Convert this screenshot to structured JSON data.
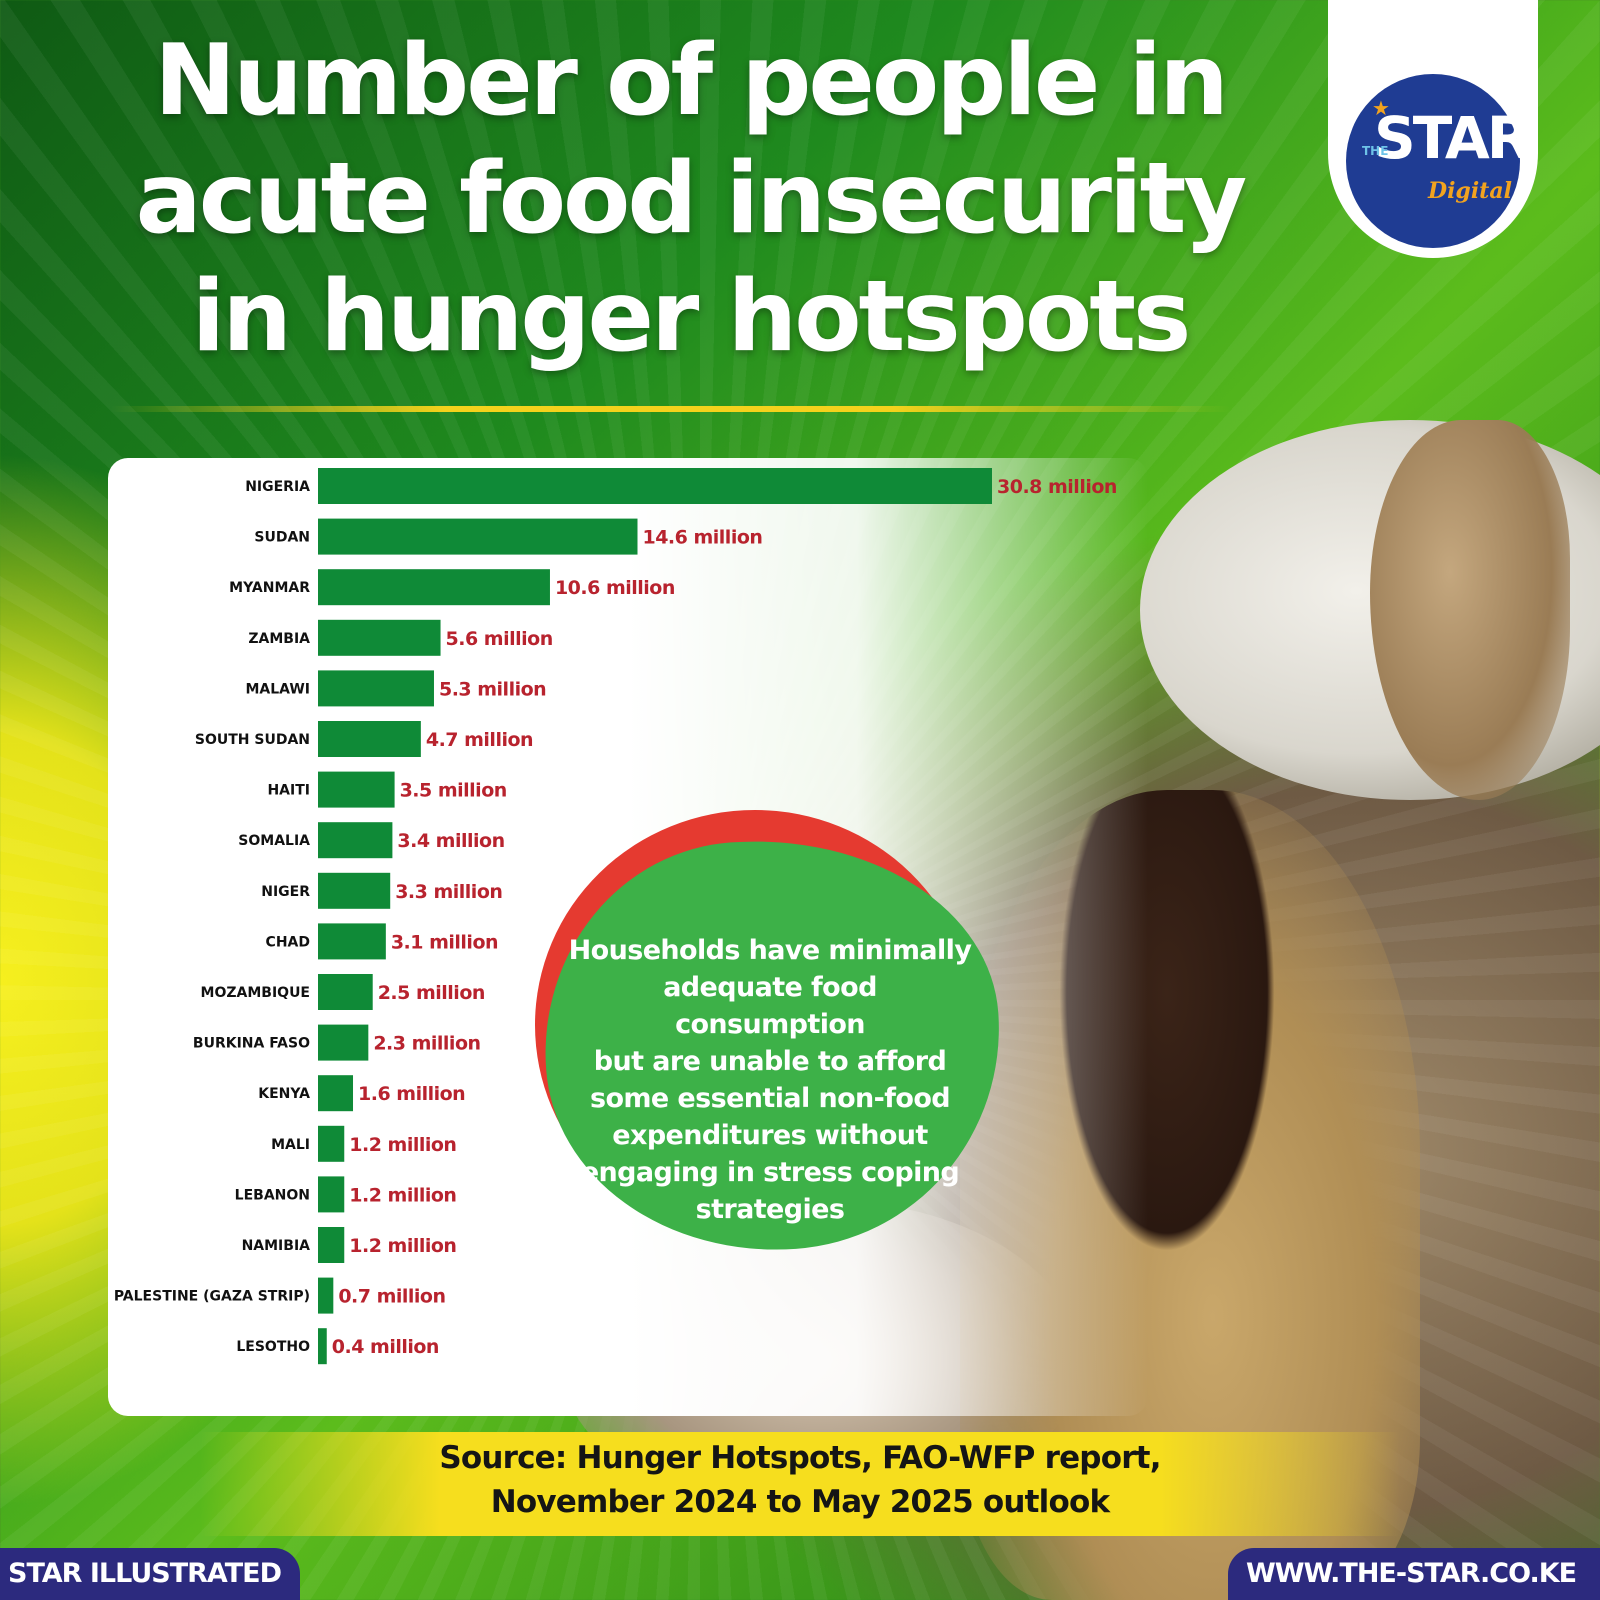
{
  "title": "Number of people in acute food insecurity in hunger hotspots",
  "title_lines": [
    "Number of people in",
    "acute food insecurity",
    "in hunger hotspots"
  ],
  "logo": {
    "the": "THE",
    "star": "STAR",
    "digital": "Digital"
  },
  "callout_lines": [
    "Households have minimally",
    "adequate food consumption",
    "but are unable to afford",
    "some essential non-food",
    "expenditures without",
    "engaging in stress coping",
    "strategies"
  ],
  "source_lines": [
    "Source: Hunger Hotspots, FAO-WFP report,",
    "November 2024 to May 2025 outlook"
  ],
  "footer": {
    "left": "STAR ILLUSTRATED",
    "right": "WWW.THE-STAR.CO.KE"
  },
  "colors": {
    "bar": "#0f8a37",
    "value_label": "#b8232e",
    "callout_green": "#3db148",
    "callout_red": "#e53a30",
    "footer_bg": "#2c2a7e",
    "source_band": "#f6de1e"
  },
  "chart_data": {
    "type": "bar",
    "orientation": "horizontal",
    "title": "Number of people in acute food insecurity in hunger hotspots",
    "xlabel": "",
    "ylabel": "",
    "unit": "million",
    "grid": false,
    "categories": [
      "NIGERIA",
      "SUDAN",
      "MYANMAR",
      "ZAMBIA",
      "MALAWI",
      "SOUTH SUDAN",
      "HAITI",
      "SOMALIA",
      "NIGER",
      "CHAD",
      "MOZAMBIQUE",
      "BURKINA FASO",
      "KENYA",
      "MALI",
      "LEBANON",
      "NAMIBIA",
      "PALESTINE (GAZA STRIP)",
      "LESOTHO"
    ],
    "values": [
      30.8,
      14.6,
      10.6,
      5.6,
      5.3,
      4.7,
      3.5,
      3.4,
      3.3,
      3.1,
      2.5,
      2.3,
      1.6,
      1.2,
      1.2,
      1.2,
      0.7,
      0.4
    ],
    "value_labels": [
      "30.8 million",
      "14.6 million",
      "10.6 million",
      "5.6 million",
      "5.3 million",
      "4.7 million",
      "3.5 million",
      "3.4 million",
      "3.3 million",
      "3.1 million",
      "2.5 million",
      "2.3 million",
      "1.6 million",
      "1.2 million",
      "1.2 million",
      "1.2 million",
      "0.7 million",
      "0.4 million"
    ],
    "xlim": [
      0,
      30.8
    ]
  }
}
